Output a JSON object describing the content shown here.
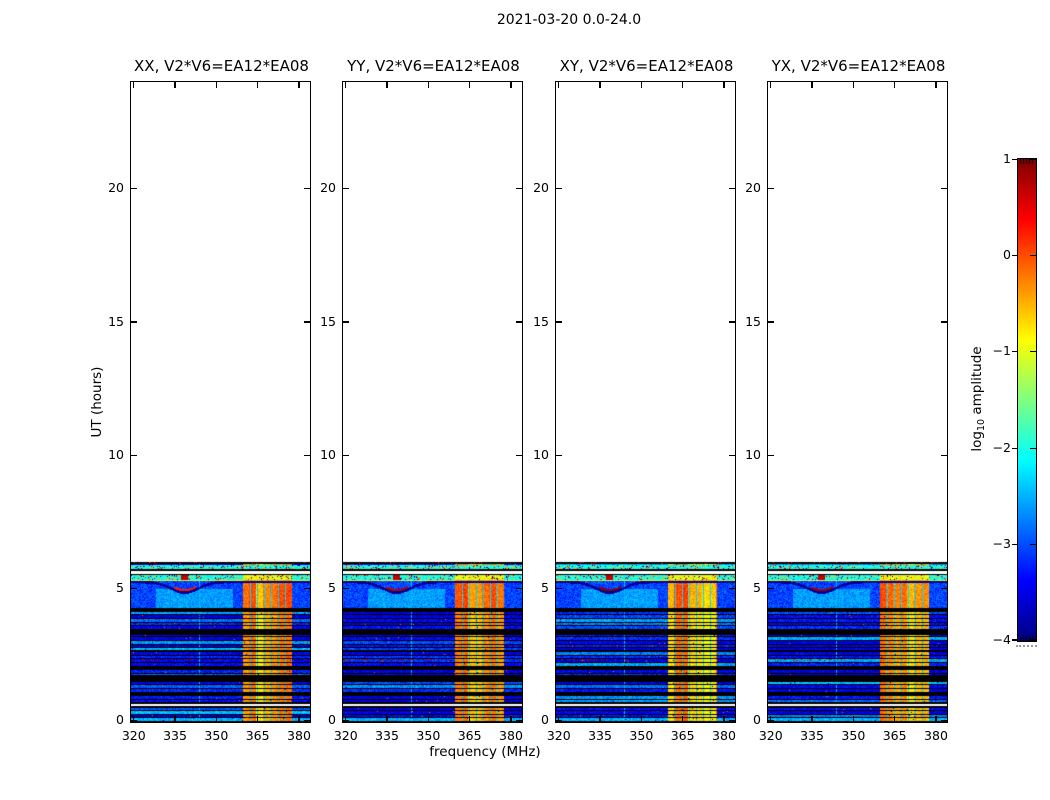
{
  "figure": {
    "title": "2021-03-20 0.0-24.0",
    "xlabel": "frequency (MHz)",
    "ylabel": "UT (hours)",
    "colorbar_label_prefix": "log",
    "colorbar_label_sub": "10",
    "colorbar_label_suffix": " amplitude"
  },
  "chart_data": {
    "type": "heatmap",
    "title": "2021-03-20 0.0-24.0",
    "description": "Dynamic spectra (time vs frequency) of visibility amplitude for baseline V2*V6=EA12*EA08 in four polarization products; data present only from 0 to ~6 UT hours, strong RFI band near 360-378 MHz.",
    "panels": [
      {
        "title": "XX, V2*V6=EA12*EA08",
        "polarization": "XX",
        "baseline": "V2*V6=EA12*EA08",
        "seed": 7,
        "arc_red_strength": 0.55
      },
      {
        "title": "YY, V2*V6=EA12*EA08",
        "polarization": "YY",
        "baseline": "V2*V6=EA12*EA08",
        "seed": 13,
        "arc_red_strength": 0.85
      },
      {
        "title": "XY, V2*V6=EA12*EA08",
        "polarization": "XY",
        "baseline": "V2*V6=EA12*EA08",
        "seed": 21,
        "arc_red_strength": 1.0
      },
      {
        "title": "YX, V2*V6=EA12*EA08",
        "polarization": "YX",
        "baseline": "V2*V6=EA12*EA08",
        "seed": 34,
        "arc_red_strength": 0.9
      }
    ],
    "x_axis": {
      "label": "frequency (MHz)",
      "range_mhz": [
        319,
        384
      ],
      "ticks": [
        320,
        335,
        350,
        365,
        380
      ],
      "tick_labels": [
        "320",
        "335",
        "350",
        "365",
        "380"
      ]
    },
    "y_axis": {
      "label": "UT (hours)",
      "range_hours": [
        0,
        24
      ],
      "ticks": [
        0,
        5,
        10,
        15,
        20
      ],
      "tick_labels": [
        "0",
        "5",
        "10",
        "15",
        "20"
      ]
    },
    "colorbar": {
      "label": "log10 amplitude",
      "range": [
        -4,
        1
      ],
      "ticks": [
        1,
        0,
        -1,
        -2,
        -3,
        -4
      ],
      "tick_labels": [
        "1",
        "0",
        "−1",
        "−2",
        "−3",
        "−4"
      ],
      "colormap": "jet"
    },
    "spectrogram": {
      "data_top_hour": 5.99,
      "row_pitch_hours": 0.138,
      "base_level": -3.25,
      "bottom_row": {
        "hours": [
          0,
          0.15
        ],
        "level": -2.5
      },
      "rfi_band": {
        "freq_mhz": [
          359.5,
          377.5
        ],
        "level": -0.5,
        "channel_lines_mhz": [
          362.5,
          365,
          367.5,
          370,
          372.5,
          375
        ],
        "channel_line_level": -2.3
      },
      "white_bands_hours": [
        [
          0.56,
          0.72
        ],
        [
          5.53,
          5.7
        ]
      ],
      "black_bands_hours": [
        [
          1.01,
          1.12
        ],
        [
          1.54,
          1.78
        ],
        [
          2.0,
          2.07
        ],
        [
          2.62,
          2.7
        ],
        [
          3.26,
          3.45
        ],
        [
          4.16,
          4.26
        ],
        [
          5.91,
          5.99
        ]
      ],
      "speck_rows_hours": [
        [
          5.7,
          5.89
        ],
        [
          5.34,
          5.53
        ]
      ],
      "speck_row_level": -2.0,
      "block_hours": [
        4.26,
        5.27
      ],
      "block_top_line": {
        "hours": [
          5.27,
          5.34
        ],
        "level": -1.15
      },
      "block_light_patch": {
        "hours": [
          4.26,
          5.0
        ],
        "freq_mhz": [
          328,
          356
        ],
        "level": -2.6
      },
      "arc": {
        "center_mhz": 338.5,
        "sigma_mhz": 7,
        "top_hour": 5.25,
        "dip_hours": 0.4,
        "level": -3.9
      },
      "red_speck_row": {
        "hours": [
          2.28,
          2.4
        ],
        "freq_max_mhz": 352,
        "level": 0.6
      },
      "light_vertical_line_mhz": 344
    }
  }
}
